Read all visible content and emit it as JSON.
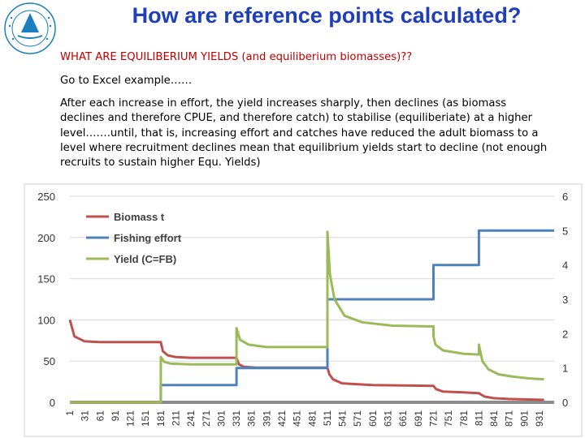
{
  "slide": {
    "title": "How are reference points calculated?",
    "heading": "WHAT ARE EQUILIBERIUM YIELDS (and equiliberium biomasses)??",
    "excel_note": "Go to Excel example……",
    "paragraph": "After each increase in effort, the yield increases sharply, then declines (as biomass declines and therefore CPUE, and therefore catch) to stabilise (equiliberiate) at a higher level…….until, that is, increasing effort and catches have reduced the adult biomass to a level where recruitment declines mean that equilibrium yields start to decline (not enough recruits to sustain higher Equ. Yields)",
    "logo_icon": "fisheries-organization-logo-icon"
  },
  "chart_data": {
    "type": "line",
    "x": {
      "min": 1,
      "max": 960,
      "tick_labels": [
        "1",
        "31",
        "61",
        "91",
        "121",
        "151",
        "181",
        "211",
        "241",
        "271",
        "301",
        "331",
        "361",
        "391",
        "421",
        "451",
        "481",
        "511",
        "541",
        "571",
        "601",
        "631",
        "661",
        "691",
        "721",
        "751",
        "781",
        "811",
        "841",
        "871",
        "901",
        "931"
      ]
    },
    "y_left": {
      "min": 0,
      "max": 250,
      "ticks": [
        "0",
        "50",
        "100",
        "150",
        "200",
        "250"
      ]
    },
    "y_right": {
      "min": 0,
      "max": 6,
      "ticks": [
        "0",
        "1",
        "2",
        "3",
        "4",
        "5",
        "6"
      ]
    },
    "grid": true,
    "legend_position": "top-left",
    "series": [
      {
        "name": "Biomass t",
        "axis": "left",
        "color": "#c0504d",
        "points": [
          [
            1,
            100
          ],
          [
            10,
            80
          ],
          [
            30,
            74
          ],
          [
            60,
            73
          ],
          [
            150,
            73
          ],
          [
            181,
            73
          ],
          [
            185,
            62
          ],
          [
            195,
            57
          ],
          [
            210,
            55
          ],
          [
            240,
            54
          ],
          [
            331,
            54
          ],
          [
            336,
            46
          ],
          [
            346,
            43
          ],
          [
            370,
            42
          ],
          [
            511,
            42
          ],
          [
            515,
            34
          ],
          [
            522,
            28
          ],
          [
            540,
            23
          ],
          [
            600,
            21
          ],
          [
            721,
            20
          ],
          [
            726,
            16
          ],
          [
            740,
            13
          ],
          [
            780,
            12
          ],
          [
            811,
            11
          ],
          [
            822,
            7
          ],
          [
            840,
            5
          ],
          [
            870,
            4
          ],
          [
            940,
            3
          ]
        ]
      },
      {
        "name": "Fishing effort",
        "axis": "right",
        "color": "#4f81bd",
        "points": [
          [
            1,
            0
          ],
          [
            181,
            0
          ],
          [
            181,
            0.5
          ],
          [
            331,
            0.5
          ],
          [
            331,
            1
          ],
          [
            511,
            1
          ],
          [
            511,
            3
          ],
          [
            721,
            3
          ],
          [
            721,
            4
          ],
          [
            811,
            4
          ],
          [
            811,
            5
          ],
          [
            960,
            5
          ]
        ]
      },
      {
        "name": "Yield (C=FB)",
        "axis": "left",
        "color": "#9bbb59",
        "points": [
          [
            1,
            0
          ],
          [
            181,
            0
          ],
          [
            181,
            55
          ],
          [
            188,
            49
          ],
          [
            200,
            47
          ],
          [
            240,
            46
          ],
          [
            331,
            46
          ],
          [
            331,
            90
          ],
          [
            338,
            76
          ],
          [
            355,
            70
          ],
          [
            390,
            67
          ],
          [
            511,
            67
          ],
          [
            511,
            207
          ],
          [
            516,
            155
          ],
          [
            525,
            125
          ],
          [
            545,
            105
          ],
          [
            580,
            97
          ],
          [
            640,
            93
          ],
          [
            721,
            92
          ],
          [
            721,
            80
          ],
          [
            725,
            70
          ],
          [
            740,
            63
          ],
          [
            780,
            59
          ],
          [
            811,
            58
          ],
          [
            811,
            70
          ],
          [
            818,
            50
          ],
          [
            830,
            40
          ],
          [
            850,
            34
          ],
          [
            880,
            31
          ],
          [
            910,
            29
          ],
          [
            940,
            28
          ]
        ]
      }
    ]
  }
}
